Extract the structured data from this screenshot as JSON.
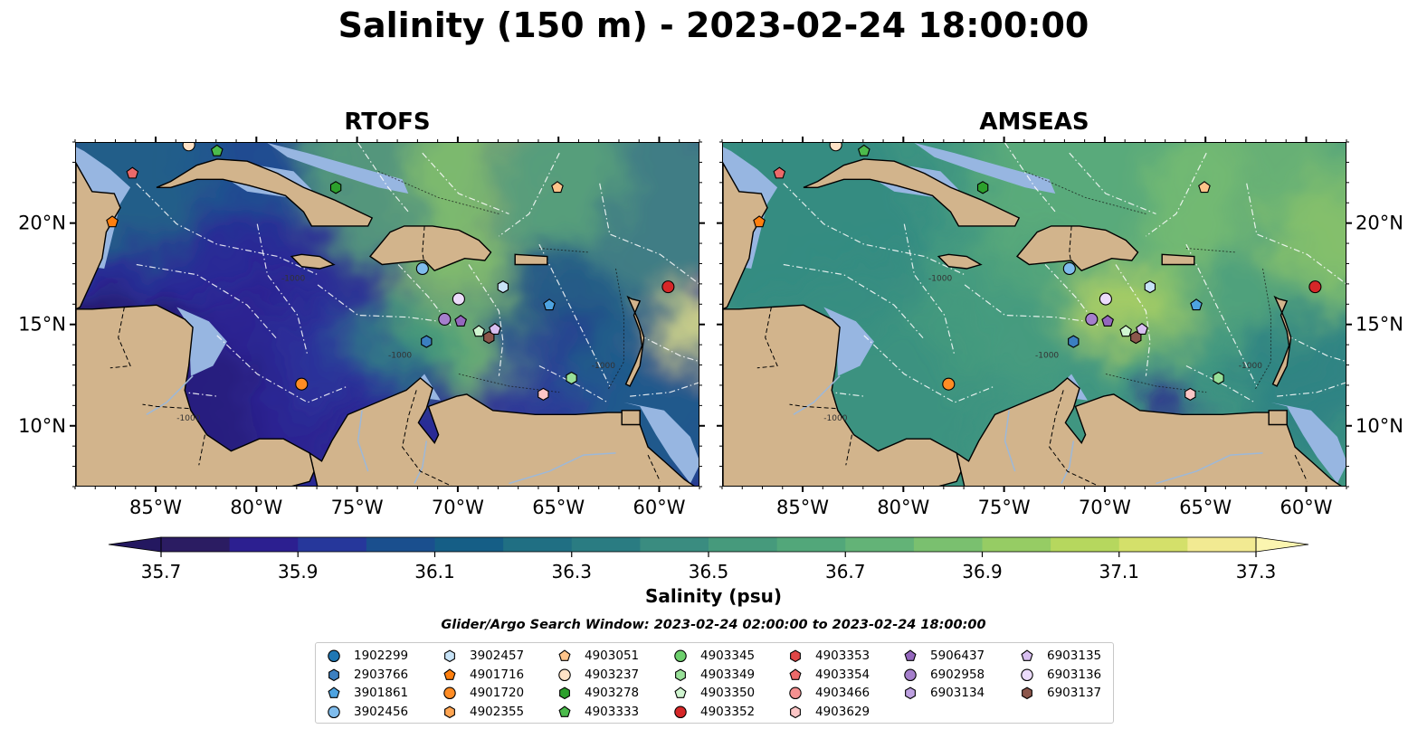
{
  "title": "Salinity (150 m) - 2023-02-24 18:00:00",
  "panels": [
    {
      "title": "RTOFS",
      "style": "rtofs"
    },
    {
      "title": "AMSEAS",
      "style": "amseas"
    }
  ],
  "map": {
    "lon_range": [
      -89,
      -58
    ],
    "lat_range": [
      7,
      24
    ],
    "lon_ticks": [
      "85°W",
      "80°W",
      "75°W",
      "70°W",
      "65°W",
      "60°W"
    ],
    "lon_tick_values": [
      -85,
      -80,
      -75,
      -70,
      -65,
      -60
    ],
    "lat_ticks": [
      "20°N",
      "15°N",
      "10°N"
    ],
    "lat_tick_values": [
      20,
      15,
      10
    ],
    "land_color": "#d2b48c",
    "shelf_color": "#97b6e1",
    "contour_labels": [
      "-1000",
      "-1000",
      "-1000",
      "-1000"
    ]
  },
  "colorbar": {
    "label": "Salinity (psu)",
    "ticks": [
      "35.7",
      "35.9",
      "36.1",
      "36.3",
      "36.5",
      "36.7",
      "36.9",
      "37.1",
      "37.3"
    ],
    "tick_values": [
      35.7,
      35.9,
      36.1,
      36.3,
      36.5,
      36.7,
      36.9,
      37.1,
      37.3
    ],
    "range": [
      35.7,
      37.3
    ],
    "colors": [
      "#2b1c62",
      "#2c1f90",
      "#26379b",
      "#1a4f8e",
      "#155e86",
      "#206f83",
      "#2a7c82",
      "#3a8c80",
      "#469a7c",
      "#52a77a",
      "#63b377",
      "#7ac06f",
      "#96cc64",
      "#b6d75e",
      "#d4e06a",
      "#f2ea92"
    ]
  },
  "search_window": "Glider/Argo Search Window: 2023-02-24 02:00:00 to 2023-02-24 18:00:00",
  "legend_columns": [
    [
      {
        "id": "1902299",
        "shape": "circle",
        "color": "#1f77b4"
      },
      {
        "id": "2903766",
        "shape": "hexagon",
        "color": "#3b7fc0"
      },
      {
        "id": "3901861",
        "shape": "pentagon",
        "color": "#4ea3e0"
      },
      {
        "id": "3902456",
        "shape": "circle",
        "color": "#7fbcec"
      }
    ],
    [
      {
        "id": "3902457",
        "shape": "hexagon",
        "color": "#c7e3f7"
      },
      {
        "id": "4901716",
        "shape": "pentagon",
        "color": "#ff7f0e"
      },
      {
        "id": "4901720",
        "shape": "circle",
        "color": "#ff8c24"
      },
      {
        "id": "4902355",
        "shape": "hexagon",
        "color": "#ffa552"
      }
    ],
    [
      {
        "id": "4903051",
        "shape": "pentagon",
        "color": "#ffc48a"
      },
      {
        "id": "4903237",
        "shape": "circle",
        "color": "#ffe2c6"
      },
      {
        "id": "4903278",
        "shape": "hexagon",
        "color": "#2ca02c"
      },
      {
        "id": "4903333",
        "shape": "pentagon",
        "color": "#4cbb4c"
      }
    ],
    [
      {
        "id": "4903345",
        "shape": "circle",
        "color": "#6ccf6c"
      },
      {
        "id": "4903349",
        "shape": "hexagon",
        "color": "#98e098"
      },
      {
        "id": "4903350",
        "shape": "pentagon",
        "color": "#d0f5d0"
      },
      {
        "id": "4903352",
        "shape": "circle",
        "color": "#d62728"
      }
    ],
    [
      {
        "id": "4903353",
        "shape": "hexagon",
        "color": "#e04646"
      },
      {
        "id": "4903354",
        "shape": "pentagon",
        "color": "#ec6a6a"
      },
      {
        "id": "4903466",
        "shape": "circle",
        "color": "#f59191"
      },
      {
        "id": "4903629",
        "shape": "hexagon",
        "color": "#fcc6c6"
      }
    ],
    [
      {
        "id": "5906437",
        "shape": "pentagon",
        "color": "#9467bd"
      },
      {
        "id": "6902958",
        "shape": "circle",
        "color": "#a57fcc"
      },
      {
        "id": "6903134",
        "shape": "hexagon",
        "color": "#bda0e0"
      }
    ],
    [
      {
        "id": "6903135",
        "shape": "pentagon",
        "color": "#d8bff0"
      },
      {
        "id": "6903136",
        "shape": "circle",
        "color": "#ecdcfb"
      },
      {
        "id": "6903137",
        "shape": "hexagon",
        "color": "#8c564b"
      }
    ]
  ],
  "platforms": [
    {
      "id": "4903333",
      "lon": -82,
      "lat": 23.6
    },
    {
      "id": "4903237",
      "lon": -83.4,
      "lat": 23.9
    },
    {
      "id": "4903354",
      "lon": -86.2,
      "lat": 22.5
    },
    {
      "id": "4901716",
      "lon": -87.2,
      "lat": 20.1
    },
    {
      "id": "4903278",
      "lon": -76.1,
      "lat": 21.8
    },
    {
      "id": "4903051",
      "lon": -65.1,
      "lat": 21.8
    },
    {
      "id": "3902456",
      "lon": -71.8,
      "lat": 17.8
    },
    {
      "id": "6903136",
      "lon": -70.0,
      "lat": 16.3
    },
    {
      "id": "3902457",
      "lon": -67.8,
      "lat": 16.9
    },
    {
      "id": "3901861",
      "lon": -65.5,
      "lat": 16.0
    },
    {
      "id": "4903352",
      "lon": -59.6,
      "lat": 16.9
    },
    {
      "id": "6902958",
      "lon": -70.7,
      "lat": 15.3
    },
    {
      "id": "5906437",
      "lon": -69.9,
      "lat": 15.2
    },
    {
      "id": "4903350",
      "lon": -69.0,
      "lat": 14.7
    },
    {
      "id": "6903135",
      "lon": -68.2,
      "lat": 14.8
    },
    {
      "id": "6903137",
      "lon": -68.5,
      "lat": 14.4
    },
    {
      "id": "2903766",
      "lon": -71.6,
      "lat": 14.2
    },
    {
      "id": "4903349",
      "lon": -64.4,
      "lat": 12.4
    },
    {
      "id": "4903629",
      "lon": -65.8,
      "lat": 11.6
    },
    {
      "id": "4901720",
      "lon": -77.8,
      "lat": 12.1
    }
  ]
}
